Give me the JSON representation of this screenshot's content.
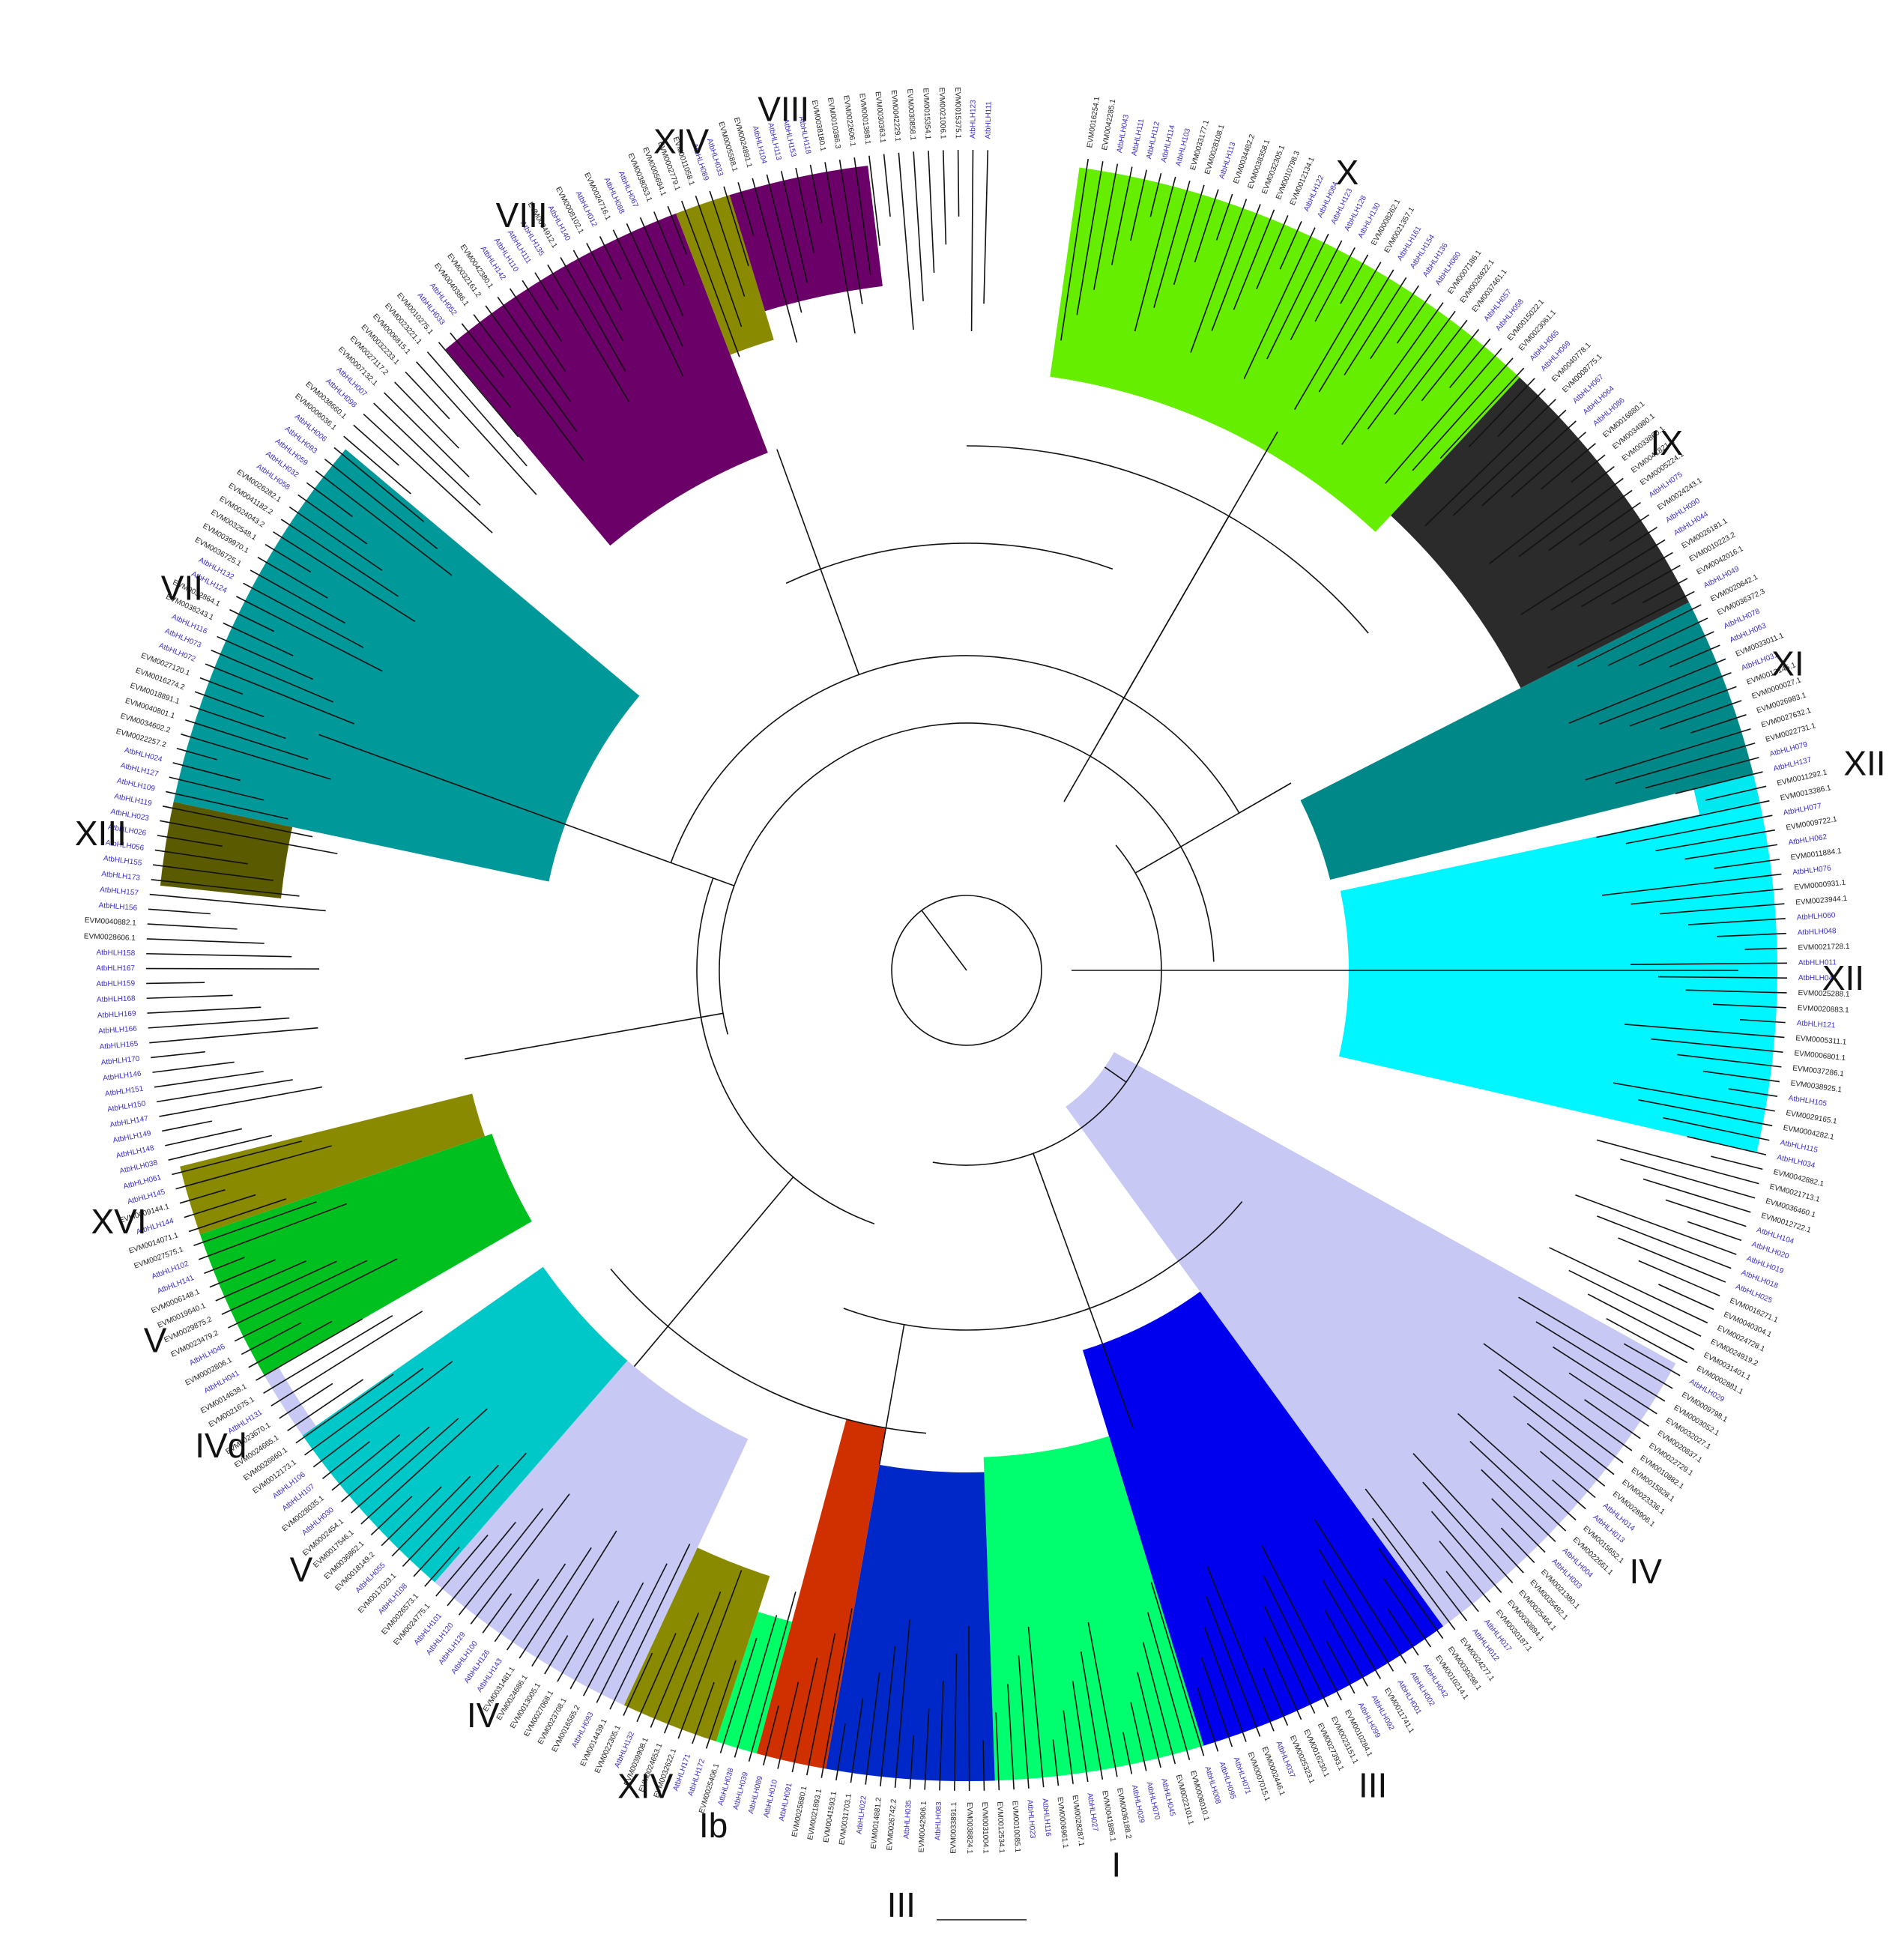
{
  "figure": {
    "colors": {
      "ab_label": "#3a2ec7",
      "evm_label": "#222222",
      "branch": "#111111"
    },
    "clades": [
      {
        "label": "X",
        "color": "#66ee00"
      },
      {
        "label": "IX",
        "color": "#2b2b2b"
      },
      {
        "label": "XI",
        "color": "#008888"
      },
      {
        "label": "XII",
        "color": "#00e8f0"
      },
      {
        "label": "XII",
        "color": "#00f6ff"
      },
      {
        "label": "IV",
        "color": "#c8c8f4"
      },
      {
        "label": "III",
        "color": "#0000ee"
      },
      {
        "label": "I",
        "color": "#00ff6e"
      },
      {
        "label": "III",
        "color": "#0028c8"
      },
      {
        "label": "",
        "color": "#d03000"
      },
      {
        "label": "Ib",
        "color": "#00ff66"
      },
      {
        "label": "XIV",
        "color": "#8a8a00"
      },
      {
        "label": "IV",
        "color": "#c8c8f4"
      },
      {
        "label": "V",
        "color": "#00c8c8"
      },
      {
        "label": "IVd",
        "color": "#c8c8f4"
      },
      {
        "label": "V",
        "color": "#00c020"
      },
      {
        "label": "XVI",
        "color": "#8a8a00"
      },
      {
        "label": "XIII",
        "color": "#5a5a00"
      },
      {
        "label": "VII",
        "color": "#009898"
      },
      {
        "label": "VIII",
        "color": "#6a0068"
      },
      {
        "label": "XIV",
        "color": "#8a8a00"
      },
      {
        "label": "VIII",
        "color": "#6a0068"
      }
    ],
    "leaf_labels": [
      "EVM0016254.1",
      "EVM0042285.1",
      "AtbHLH043",
      "AtbHLH111",
      "AtbHLH112",
      "AtbHLH114",
      "AtbHLH103",
      "EVM0033177.1",
      "EVM0028108.1",
      "AtbHLH113",
      "EVM0034482.2",
      "EVM0038358.1",
      "EVM0032305.1",
      "EVM0010798.3",
      "EVM0012134.1",
      "AtbHLH122",
      "AtbHLH084",
      "AtbHLH123",
      "AtbHLH128",
      "AtbHLH130",
      "EVM0008262.1",
      "EVM0021357.1",
      "AtbHLH161",
      "AtbHLH154",
      "AtbHLH136",
      "AtbHLH080",
      "EVM0007186.1",
      "EVM0026922.1",
      "EVM0037461.1",
      "AtbHLH057",
      "AtbHLH058",
      "EVM0015022.1",
      "EVM0023061.1",
      "AtbHLH065",
      "AtbHLH069",
      "EVM0040778.1",
      "EVM0008775.1",
      "AtbHLH067",
      "AtbHLH064",
      "AtbHLH086",
      "EVM0016880.1",
      "EVM0034980.1",
      "EVM0033860.1",
      "EVM0041821.1",
      "EVM0005224.1",
      "AtbHLH075",
      "EVM0024243.1",
      "AtbHLH090",
      "AtbHLH044",
      "EVM0026181.1",
      "EVM0010223.2",
      "EVM0042016.1",
      "AtbHLH049",
      "EVM0020642.1",
      "EVM0036372.3",
      "AtbHLH078",
      "AtbHLH063",
      "EVM0033011.1",
      "AtbHLH031",
      "EVM0013145.1",
      "EVM0000027.1",
      "EVM0026983.1",
      "EVM0027632.1",
      "EVM0022731.1",
      "AtbHLH079",
      "AtbHLH137",
      "EVM0011292.1",
      "EVM0013386.1",
      "AtbHLH077",
      "EVM0009722.1",
      "AtbHLH062",
      "EVM0011884.1",
      "AtbHLH076",
      "EVM0000931.1",
      "EVM0023944.1",
      "AtbHLH060",
      "AtbHLH048",
      "EVM0021728.1",
      "AtbHLH011",
      "AtbHLH047",
      "EVM0025288.1",
      "EVM0020883.1",
      "AtbHLH121",
      "EVM0005311.1",
      "EVM0006801.1",
      "EVM0037286.1",
      "EVM0038925.1",
      "AtbHLH105",
      "EVM0029165.1",
      "EVM0004282.1",
      "AtbHLH115",
      "AtbHLH034",
      "EVM0042882.1",
      "EVM0021713.1",
      "EVM0036460.1",
      "EVM0012722.1",
      "AtbHLH104",
      "AtbHLH020",
      "AtbHLH019",
      "AtbHLH018",
      "AtbHLH025",
      "EVM0016271.1",
      "EVM0040304.1",
      "EVM0024728.1",
      "EVM0024919.2",
      "EVM0031401.1",
      "EVM0002881.1",
      "AtbHLH029",
      "EVM0009798.1",
      "EVM0003052.1",
      "EVM0032027.1",
      "EVM0020837.1",
      "EVM0022729.1",
      "EVM0010882.1",
      "EVM0015828.1",
      "EVM0023336.1",
      "EVM0028906.1",
      "AtbHLH014",
      "AtbHLH013",
      "EVM0015652.1",
      "EVM0022661.1",
      "AtbHLH004",
      "AtbHLH003",
      "EVM0021380.1",
      "EVM0035492.1",
      "EVM0025464.1",
      "EVM0030894.1",
      "EVM0030187.1",
      "AtbHLH017",
      "AtbHLH012",
      "EVM0024277.1",
      "EVM0030298.1",
      "EVM0010214.1",
      "AtbHLH042",
      "AtbHLH002",
      "AtbHLH001",
      "EVM0011741.1",
      "AtbHLH092",
      "AtbHLH099",
      "EVM0010284.1",
      "EVM0023151.1",
      "EVM0027393.1",
      "EVM0016230.1",
      "EVM0025323.1",
      "AtbHLH037",
      "EVM0002446.1",
      "EVM0007015.1",
      "AtbHLH071",
      "AtbHLH095",
      "AtbHLH008",
      "EVM0006010.1",
      "EVM0022101.1",
      "AtbHLH045",
      "AtbHLH070",
      "AtbHLH029",
      "EVM0036188.2",
      "EVM0041886.1",
      "AtbHLH027",
      "EVM0028287.1",
      "EVM0006961.1",
      "AtbHLH116",
      "AtbHLH023",
      "EVM0010085.1",
      "EVM0012534.1",
      "EVM0031004.1",
      "EVM0038824.1",
      "EVM0033891.1",
      "AtbHLH083",
      "EVM0042906.1",
      "AtbHLH035",
      "EVM0026742.2",
      "EVM0014881.2",
      "AtbHLH022",
      "EVM0031703.1",
      "EVM0041593.1",
      "EVM0021893.1",
      "EVM0025880.1",
      "AtbHLH091",
      "AtbHLH010",
      "AtbHLH089",
      "AtbHLH039",
      "AtbHLH038",
      "EVM0025406.1",
      "AtbHLH172",
      "AtbHLH171",
      "EVM0032622.1",
      "EVM0024653.1",
      "EVM0039908.1",
      "AtbHLH132",
      "EVM0022305.1",
      "EVM0014439.1",
      "AtbHLH093",
      "EVM0016565.2",
      "EVM0023708.1",
      "EVM0027068.1",
      "EVM0013005.1",
      "EVM0024686.1",
      "EVM0031481.1",
      "AtbHLH143",
      "AtbHLH126",
      "AtbHLH100",
      "AtbHLH129",
      "AtbHLH120",
      "AtbHLH101",
      "EVM0024775.1",
      "EVM0026573.1",
      "AtbHLH108",
      "EVM0017023.1",
      "AtbHLH055",
      "EVM0018149.2",
      "EVM0036862.1",
      "EVM0017546.1",
      "EVM0002454.1",
      "AtbHLH030",
      "EVM0028035.1",
      "AtbHLH107",
      "AtbHLH106",
      "EVM0012173.1",
      "EVM0026660.1",
      "EVM0024665.1",
      "EVM0023670.1",
      "AtbHLH131",
      "EVM0021675.1",
      "EVM0014638.1",
      "AtbHLH041",
      "EVM0002806.1",
      "AtbHLH046",
      "EVM0023479.2",
      "EVM0029875.2",
      "EVM0019640.1",
      "EVM0006148.1",
      "AtbHLH141",
      "AtbHLH102",
      "EVM0027575.1",
      "EVM0014071.1",
      "AtbHLH144",
      "EVM0009144.1",
      "AtbHLH145",
      "AtbHLH061",
      "AtbHLH038",
      "AtbHLH148",
      "AtbHLH149",
      "AtbHLH147",
      "AtbHLH150",
      "AtbHLH151",
      "AtbHLH146",
      "AtbHLH170",
      "AtbHLH165",
      "AtbHLH166",
      "AtbHLH169",
      "AtbHLH168",
      "AtbHLH159",
      "AtbHLH167",
      "AtbHLH158",
      "EVM0028606.1",
      "EVM0040882.1",
      "AtbHLH156",
      "AtbHLH157",
      "AtbHLH173",
      "AtbHLH155",
      "AtbHLH056",
      "AtbHLH026",
      "AtbHLH023",
      "AtbHLH119",
      "AtbHLH109",
      "AtbHLH127",
      "AtbHLH024",
      "EVM0022257.2",
      "EVM0034602.2",
      "EVM0040801.1",
      "EVM0018891.1",
      "EVM0016274.2",
      "EVM0027120.1",
      "AtbHLH072",
      "AtbHLH073",
      "AtbHLH116",
      "EVM0038243.1",
      "EVM0032864.1",
      "AtbHLH124",
      "AtbHLH132",
      "EVM0036725.1",
      "EVM0039970.1",
      "EVM0032548.1",
      "EVM0024043.2",
      "EVM0041182.2",
      "EVM0026282.1",
      "AtbHLH058",
      "AtbHLH032",
      "AtbHLH059",
      "AtbHLH093",
      "AtbHLH006",
      "EVM0006036.1",
      "EVM0038660.1",
      "AtbHLH098",
      "AtbHLH007",
      "EVM0007132.1",
      "EVM0027117.2",
      "EVM0032233.1",
      "EVM0006815.1",
      "EVM0023221.1",
      "EVM0010275.1",
      "AtbHLH033",
      "AtbHLH052",
      "EVM0040386.1",
      "EVM0032161.2",
      "EVM0042380.1",
      "AtbHLH142",
      "AtbHLH110",
      "AtbHLH111",
      "AtbHLH135",
      "EVM0004912.1",
      "AtbHLH140",
      "EVM0008102.1",
      "AtbHLH012",
      "EVM0024716.1",
      "AtbHLH088",
      "AtbHLH067",
      "EVM0038053.1",
      "EVM0005694.1",
      "EVM0002779.1",
      "EVM0011058.1",
      "AtbHLH089",
      "AtbHLH033",
      "EVM0005588.1",
      "EVM0024891.1",
      "AtbHLH104",
      "AtbHLH113",
      "AtbHLH153",
      "AtbHLH118",
      "EVM0038180.1",
      "EVM0010386.3",
      "EVM0022606.1",
      "EVM0001388.1",
      "EVM0030363.1",
      "EVM0042229.1",
      "EVM0030858.1",
      "EVM0015354.1",
      "EVM0021006.1",
      "EVM0015375.1",
      "AtbHLH123",
      "AtbHLH111"
    ],
    "scale_bar": ""
  }
}
